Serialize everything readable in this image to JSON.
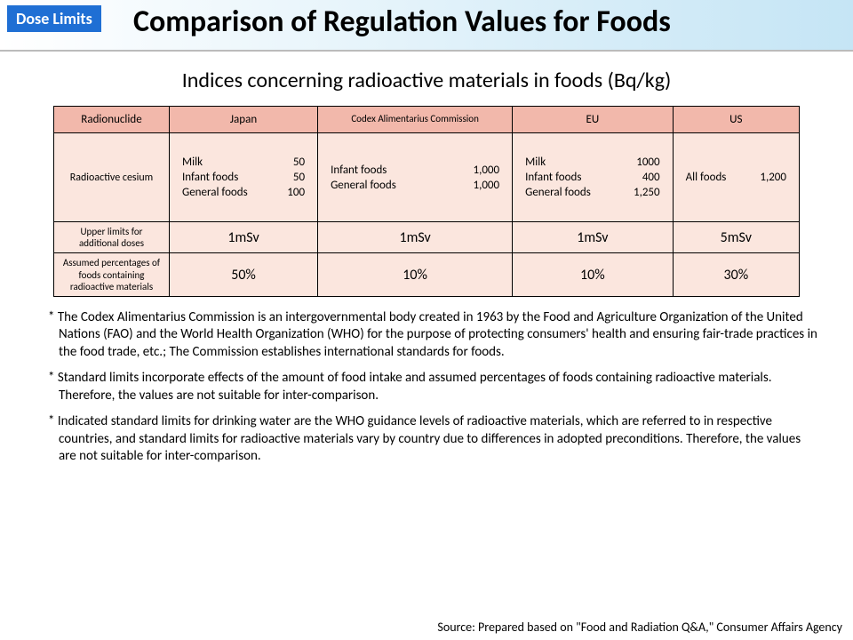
{
  "header": {
    "badge": "Dose Limits",
    "title": "Comparison of Regulation Values for Foods"
  },
  "subtitle": "Indices concerning radioactive materials in foods (Bq/kg)",
  "table": {
    "columns": [
      "Radionuclide",
      "Japan",
      "Codex Alimentarius Commission",
      "EU",
      "US"
    ],
    "colors": {
      "header_bg": "#f2b8ab",
      "cell_bg": "#fbe6de",
      "border": "#000000"
    },
    "cesium": {
      "label": "Radioactive cesium",
      "japan": [
        {
          "food": "Milk",
          "value": "50"
        },
        {
          "food": "Infant foods",
          "value": "50"
        },
        {
          "food": "General foods",
          "value": "100"
        }
      ],
      "codex": [
        {
          "food": "Infant foods",
          "value": "1,000"
        },
        {
          "food": "General foods",
          "value": "1,000"
        }
      ],
      "eu": [
        {
          "food": "Milk",
          "value": "1000"
        },
        {
          "food": "Infant foods",
          "value": "400"
        },
        {
          "food": "General foods",
          "value": "1,250"
        }
      ],
      "us": [
        {
          "food": "All foods",
          "value": "1,200"
        }
      ]
    },
    "limits": {
      "label": "Upper limits for additional doses",
      "values": [
        "1mSv",
        "1mSv",
        "1mSv",
        "5mSv"
      ]
    },
    "assumed": {
      "label": "Assumed percentages of foods containing radioactive materials",
      "values": [
        "50%",
        "10%",
        "10%",
        "30%"
      ]
    }
  },
  "notes": [
    "* The Codex Alimentarius Commission is an intergovernmental body created in 1963 by the Food and Agriculture Organization of the United Nations (FAO) and the World Health Organization (WHO) for the purpose of protecting consumers' health and ensuring fair-trade practices in the food trade, etc.; The Commission establishes international standards for foods.",
    "* Standard limits incorporate effects of the amount of food intake and assumed percentages of foods containing radioactive materials. Therefore, the values are not suitable for inter-comparison.",
    "* Indicated standard limits for drinking water are the WHO guidance levels of radioactive materials, which are referred to in respective countries, and standard limits for radioactive materials vary by country due to differences in adopted preconditions. Therefore, the values are not suitable for inter-comparison."
  ],
  "source": "Source: Prepared based on \"Food and Radiation Q&A,\" Consumer Affairs Agency"
}
